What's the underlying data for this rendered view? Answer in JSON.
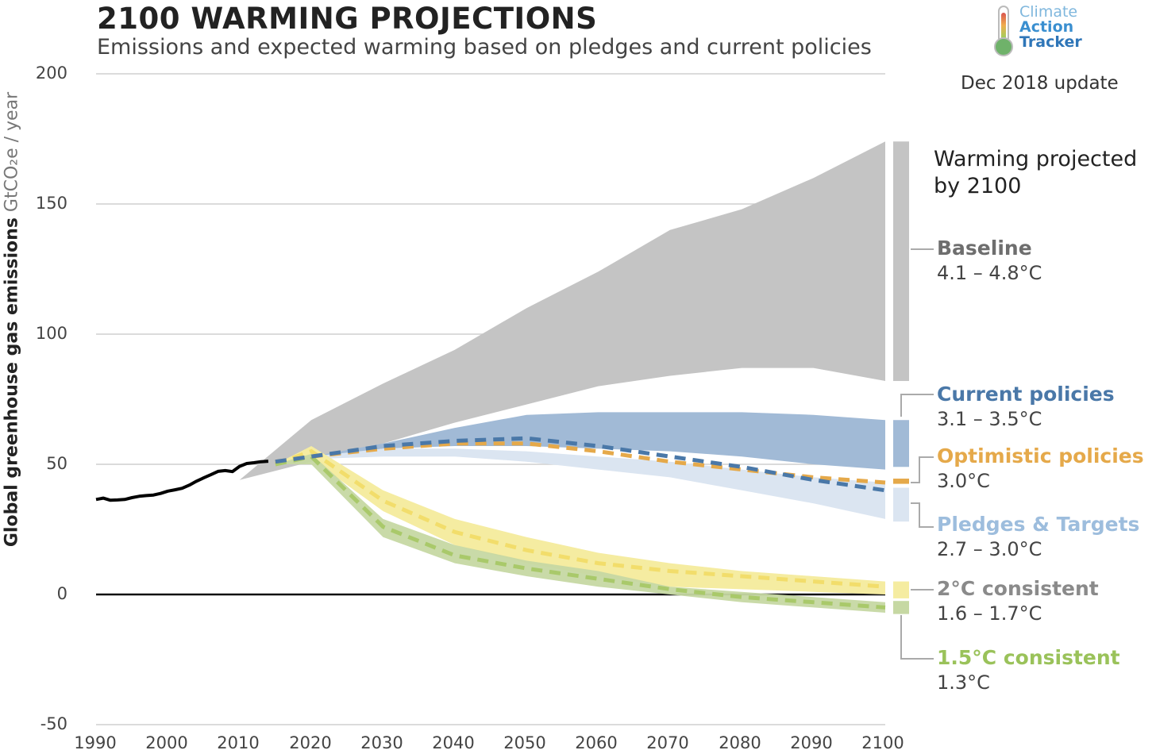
{
  "chart_data": {
    "type": "area",
    "title": "2100 WARMING PROJECTIONS",
    "subtitle": "Emissions and expected warming based on pledges and current policies",
    "ylabel": "Global greenhouse gas emissions",
    "yunit": "GtCO₂e / year",
    "xlim": [
      1990,
      2100
    ],
    "ylim": [
      -50,
      200
    ],
    "xticks": [
      "1990",
      "2000",
      "2010",
      "2020",
      "2030",
      "2040",
      "2050",
      "2060",
      "2070",
      "2080",
      "2090",
      "2100"
    ],
    "yticks": [
      "200",
      "150",
      "100",
      "50",
      "0",
      "-50"
    ],
    "grid": true,
    "historical": {
      "x": [
        1990,
        1991,
        1992,
        1993,
        1994,
        1995,
        1996,
        1997,
        1998,
        1999,
        2000,
        2001,
        2002,
        2003,
        2004,
        2005,
        2006,
        2007,
        2008,
        2009,
        2010,
        2011,
        2012,
        2013,
        2014
      ],
      "y": [
        36.5,
        37.0,
        36.2,
        36.3,
        36.5,
        37.2,
        37.7,
        38.0,
        38.2,
        38.8,
        39.7,
        40.2,
        40.8,
        42.0,
        43.5,
        44.8,
        46.0,
        47.3,
        47.6,
        47.2,
        49.2,
        50.3,
        50.6,
        51.0,
        51.2
      ]
    },
    "series": [
      {
        "name": "Baseline",
        "warming": "4.1 – 4.8°C",
        "color": "#c4c4c4",
        "x": [
          2010,
          2020,
          2030,
          2040,
          2050,
          2060,
          2070,
          2080,
          2090,
          2100
        ],
        "upper": [
          44,
          67,
          81,
          94,
          110,
          124,
          140,
          148,
          160,
          174
        ],
        "lower": [
          44,
          51,
          58,
          66,
          73,
          80,
          84,
          87,
          87,
          82
        ]
      },
      {
        "name": "Current policies",
        "warming": "3.1 – 3.5°C",
        "color": "#a1bad6",
        "x": [
          2015,
          2020,
          2030,
          2040,
          2050,
          2060,
          2070,
          2080,
          2090,
          2100
        ],
        "upper": [
          51,
          53,
          58,
          64,
          69,
          70,
          70,
          70,
          69,
          67
        ],
        "lower": [
          51,
          52,
          56,
          57,
          57,
          56,
          55,
          53,
          50,
          48
        ],
        "mid": [
          51,
          53,
          57,
          59,
          60,
          57,
          53,
          49,
          44,
          40
        ]
      },
      {
        "name": "Optimistic policies",
        "warming": "3.0°C",
        "color": "#e5a94a",
        "x": [
          2015,
          2020,
          2030,
          2040,
          2050,
          2060,
          2070,
          2080,
          2090,
          2100
        ],
        "mid": [
          51,
          53,
          56,
          58,
          58,
          55,
          51,
          48,
          45,
          43
        ]
      },
      {
        "name": "Pledges & Targets",
        "warming": "2.7 – 3.0°C",
        "color": "#dbe5f1",
        "x": [
          2015,
          2020,
          2030,
          2040,
          2050,
          2060,
          2070,
          2080,
          2090,
          2100
        ],
        "upper": [
          51,
          53,
          56,
          56,
          55,
          53,
          51,
          48,
          45,
          43
        ],
        "lower": [
          51,
          52,
          53,
          53,
          51,
          48,
          45,
          40,
          35,
          29
        ]
      },
      {
        "name": "2°C consistent",
        "warming": "1.6 – 1.7°C",
        "color": "#f5eca1",
        "x": [
          2015,
          2020,
          2030,
          2040,
          2050,
          2060,
          2070,
          2080,
          2090,
          2100
        ],
        "upper": [
          50,
          57,
          40,
          29,
          22,
          16,
          12,
          9,
          7,
          5
        ],
        "lower": [
          50,
          52,
          32,
          19,
          12,
          7,
          3,
          2,
          1,
          0
        ],
        "mid": [
          50,
          55,
          36,
          24,
          17,
          12,
          9,
          7,
          5,
          3
        ]
      },
      {
        "name": "1.5°C consistent",
        "warming": "1.3°C",
        "color": "#c6d8a3",
        "x": [
          2015,
          2020,
          2030,
          2040,
          2050,
          2060,
          2070,
          2080,
          2090,
          2100
        ],
        "upper": [
          50,
          54,
          29,
          19,
          13,
          9,
          3,
          1,
          -1,
          -3
        ],
        "lower": [
          50,
          50,
          22,
          12,
          7,
          3,
          0,
          -3,
          -5,
          -7
        ],
        "mid": [
          50,
          53,
          26,
          15,
          10,
          6,
          2,
          -1,
          -3,
          -5
        ]
      }
    ],
    "bars": [
      {
        "name": "Baseline",
        "color": "#c4c4c4",
        "range": [
          82,
          174
        ]
      },
      {
        "name": "Current policies",
        "color": "#a1bad6",
        "range": [
          49,
          67
        ]
      },
      {
        "name": "Optimistic policies",
        "color": "#e5a94a",
        "range": [
          42.5,
          44.5
        ]
      },
      {
        "name": "Pledges & Targets",
        "color": "#dbe5f1",
        "range": [
          28,
          41
        ]
      },
      {
        "name": "2°C consistent",
        "color": "#f5eca1",
        "range": [
          -1.5,
          5
        ]
      },
      {
        "name": "1.5°C consistent",
        "color": "#c6d8a3",
        "range": [
          -7.5,
          -2.5
        ]
      }
    ],
    "legend_title": "Warming projected by 2100",
    "legend_placement": "right"
  },
  "header": {
    "logo_lines": [
      "Climate",
      "Action",
      "Tracker"
    ],
    "update": "Dec 2018 update"
  },
  "labels": {
    "warming_head_1": "Warming projected",
    "warming_head_2": "by 2100",
    "baseline_name": "Baseline",
    "baseline_range": "4.1 – 4.8°C",
    "current_name": "Current policies",
    "current_range": "3.1 – 3.5°C",
    "optimistic_name": "Optimistic policies",
    "optimistic_range": "3.0°C",
    "pledges_name": "Pledges & Targets",
    "pledges_range": "2.7 – 3.0°C",
    "two_name": "2°C consistent",
    "two_range": "1.6 – 1.7°C",
    "onefive_name": "1.5°C consistent",
    "onefive_range": "1.3°C"
  },
  "colors": {
    "baseline": "#6e6e6e",
    "current": "#4a78a8",
    "optimistic": "#e5a94a",
    "pledges": "#9dbddd",
    "two": "#8a8a8a",
    "onefive": "#9ac25a"
  }
}
